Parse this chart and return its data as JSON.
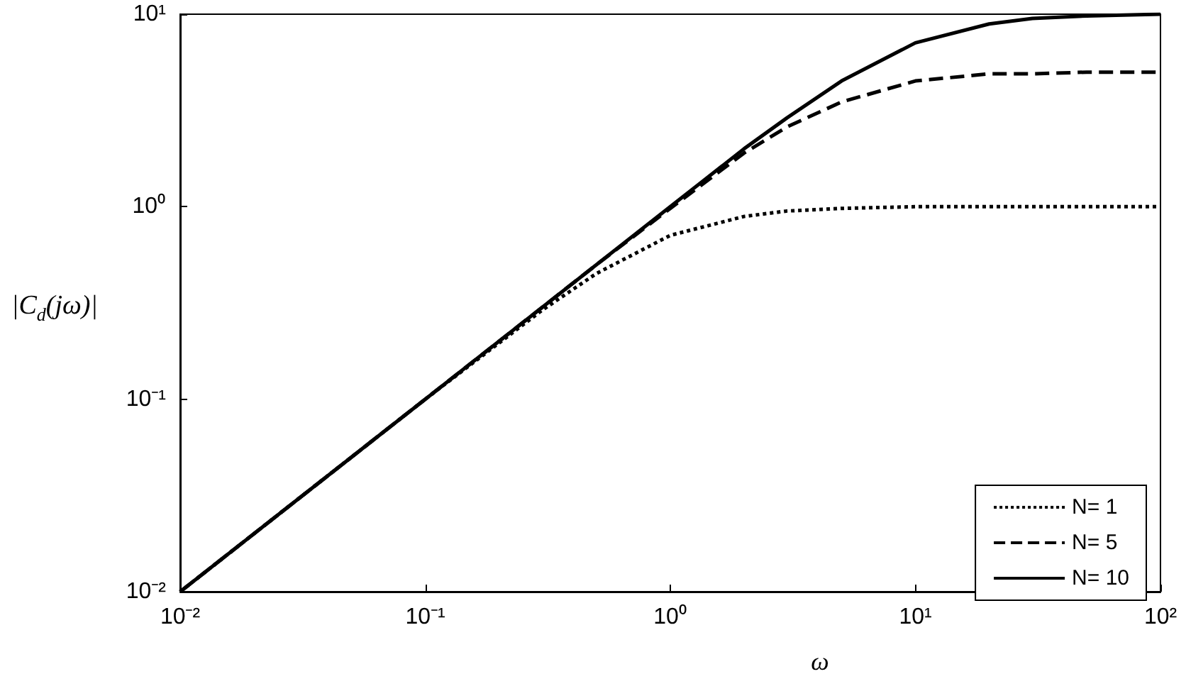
{
  "chart_data": {
    "type": "line",
    "xlabel": "ω",
    "ylabel": "|C$_{d}$(jω)|",
    "log": "xy",
    "grid": false,
    "legend": "bottom right",
    "marker": "none",
    "x": [
      0.01,
      0.03,
      0.1,
      0.3,
      0.5,
      1,
      2,
      3,
      5,
      10,
      20,
      30,
      50,
      100
    ],
    "xlim": [
      0.01,
      100
    ],
    "ylim": [
      0.01,
      10
    ],
    "xticks": [
      {
        "value": 0.01,
        "label": "10⁻²"
      },
      {
        "value": 0.1,
        "label": "10⁻¹"
      },
      {
        "value": 1,
        "label": "10⁰"
      },
      {
        "value": 10,
        "label": "10¹"
      },
      {
        "value": 100,
        "label": "10²"
      }
    ],
    "yticks": [
      {
        "value": 0.01,
        "label": "10⁻²"
      },
      {
        "value": 0.1,
        "label": "10⁻¹"
      },
      {
        "value": 1,
        "label": "10⁰"
      },
      {
        "value": 10,
        "label": "10¹"
      }
    ],
    "series": [
      {
        "name": "N= 1",
        "color": "#000000",
        "line_style": "dotted",
        "values": [
          0.01,
          0.03,
          0.1,
          0.29,
          0.45,
          0.71,
          0.89,
          0.95,
          0.98,
          1,
          1,
          1,
          1,
          1
        ]
      },
      {
        "name": "N= 5",
        "color": "#000000",
        "line_style": "dashed",
        "values": [
          0.01,
          0.03,
          0.1,
          0.3,
          0.5,
          0.98,
          1.9,
          2.6,
          3.5,
          4.5,
          4.9,
          4.9,
          5,
          5
        ]
      },
      {
        "name": "N= 10",
        "color": "#000000",
        "line_style": "solid",
        "values": [
          0.01,
          0.03,
          0.1,
          0.3,
          0.5,
          1,
          2,
          2.9,
          4.5,
          7.1,
          8.9,
          9.5,
          9.8,
          10
        ]
      }
    ]
  }
}
